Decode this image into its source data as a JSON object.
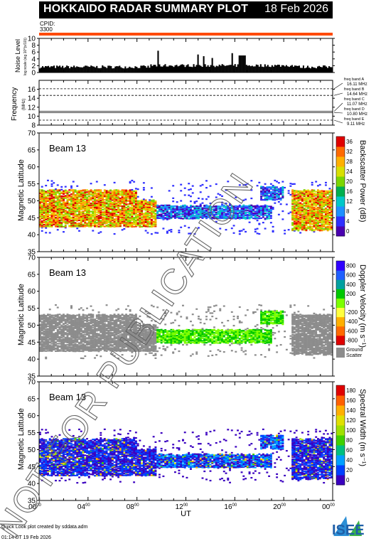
{
  "header": {
    "title": "HOKKAIDO RADAR SUMMARY PLOT",
    "date": "18 Feb 2026",
    "cpid_label": "CPID:",
    "cpid_value": "3300"
  },
  "colors": {
    "cpid_bar": "#ff4a00",
    "ground_scatter": "#8c8c8c"
  },
  "footer": {
    "credit": "Quick Look plot created by sddata.adm",
    "generated": "01:14 UT 19 Feb 2026",
    "logo_text": "ISEE"
  },
  "watermark": "NOT FOR PUBLICATION",
  "x_axis": {
    "label": "UT",
    "ticks": [
      "00",
      "04",
      "08",
      "12",
      "16",
      "20",
      "00"
    ],
    "tick_superscript": "00",
    "range_hours": [
      0,
      24
    ]
  },
  "chart_data": [
    {
      "type": "bar",
      "name": "noise",
      "ylabel": "Noise Level",
      "ylabel_sub": "log scale (sig 10^(x/10))",
      "ylim": [
        0,
        10
      ],
      "yticks": [
        0,
        2,
        4,
        6,
        8,
        10
      ]
    },
    {
      "type": "line",
      "name": "frequency",
      "ylabel": "Frequency",
      "ylabel_unit": "(MHz)",
      "ylim": [
        8,
        18
      ],
      "yticks": [
        8,
        10,
        12,
        14,
        16
      ],
      "bands": [
        {
          "label": "freq band A",
          "value_label": "16.11 MHz",
          "value": 16.11
        },
        {
          "label": "freq band B",
          "value_label": "14.64 MHz",
          "value": 14.64
        },
        {
          "label": "freq band C",
          "value_label": "11.07 MHz",
          "value": 11.07
        },
        {
          "label": "freq band D",
          "value_label": "10.80 MHz",
          "value": 10.8
        },
        {
          "label": "freq band E",
          "value_label": "9.11 MHz",
          "value": 9.11
        }
      ]
    },
    {
      "type": "heatmap",
      "name": "power",
      "beam_label": "Beam 13",
      "ylabel": "Magnetic Latitude",
      "ylim": [
        35,
        70
      ],
      "yticks": [
        35,
        40,
        45,
        50,
        55,
        60,
        65,
        70
      ],
      "colorbar_label": "Backscatter Power (dB)",
      "colorbar_ticks": [
        0,
        4,
        8,
        12,
        16,
        20,
        24,
        28,
        32,
        36
      ]
    },
    {
      "type": "heatmap",
      "name": "velocity",
      "beam_label": "Beam 13",
      "ylabel": "Magnetic Latitude",
      "ylim": [
        35,
        70
      ],
      "yticks": [
        35,
        40,
        45,
        50,
        55,
        60,
        65,
        70
      ],
      "colorbar_label": "Doppler Velocity (m s⁻¹)",
      "colorbar_ticks": [
        -800,
        -600,
        -400,
        -200,
        0,
        200,
        400,
        600,
        800
      ],
      "gs_label_1": "Ground",
      "gs_label_2": "Scatter"
    },
    {
      "type": "heatmap",
      "name": "width",
      "beam_label": "Beam 13",
      "ylabel": "Magnetic Latitude",
      "ylim": [
        35,
        70
      ],
      "yticks": [
        35,
        40,
        45,
        50,
        55,
        60,
        65,
        70
      ],
      "colorbar_label": "Spectral Width (m s⁻¹)",
      "colorbar_ticks": [
        0,
        20,
        40,
        60,
        80,
        100,
        120,
        140,
        160,
        180
      ]
    }
  ]
}
